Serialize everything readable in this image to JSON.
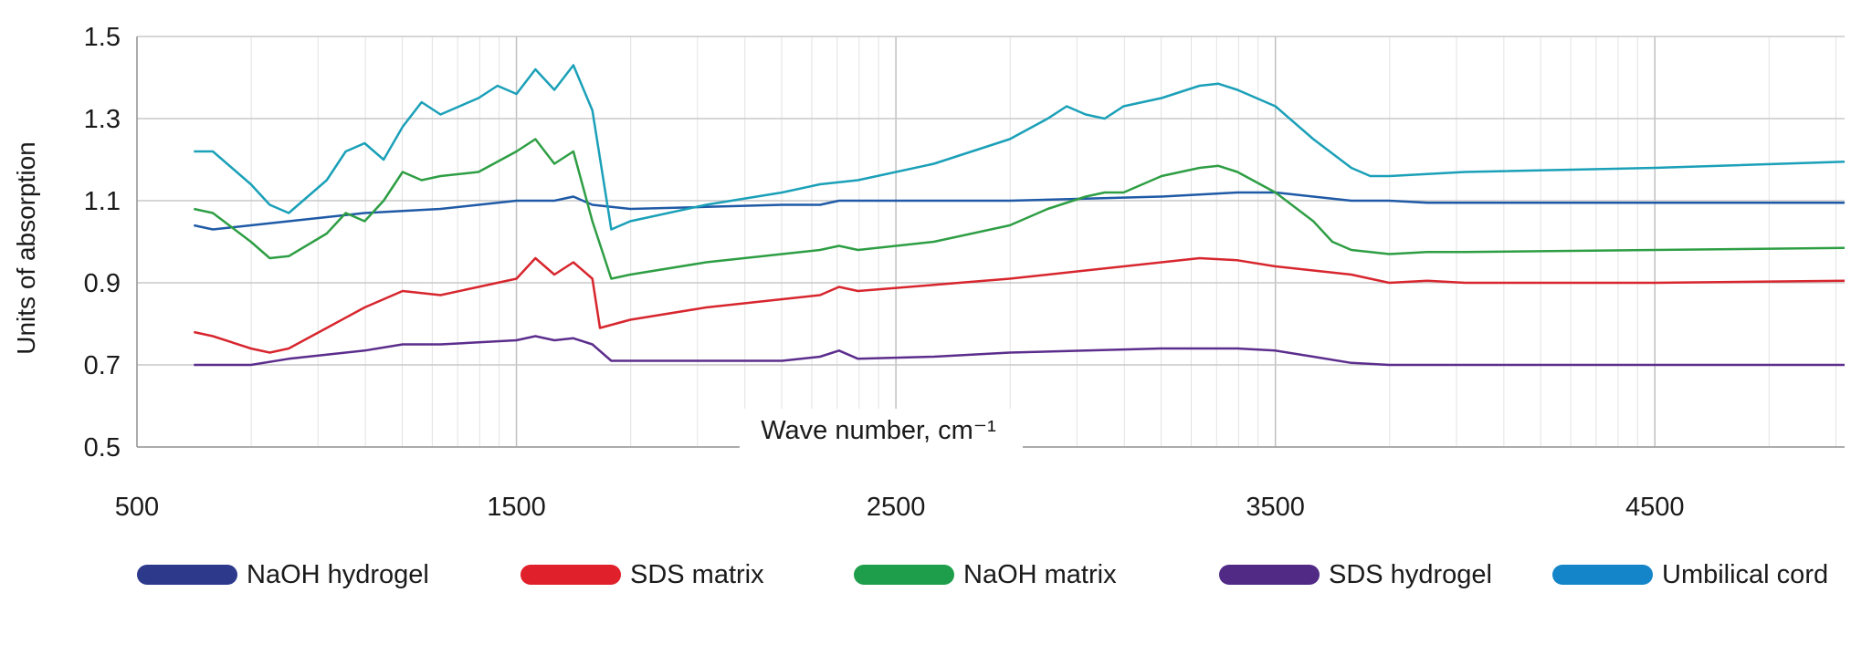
{
  "chart_data": {
    "type": "line",
    "xlabel": "Wave number, cm⁻¹",
    "ylabel": "Units of absorption",
    "xlim": [
      500,
      5000
    ],
    "ylim": [
      0.5,
      1.5
    ],
    "x_ticks": [
      "500",
      "1500",
      "2500",
      "3500",
      "4500"
    ],
    "y_ticks": [
      "0.5",
      "0.7",
      "0.9",
      "1.1",
      "1.3",
      "1.5"
    ],
    "grid": true,
    "legend_position": "bottom",
    "series": [
      {
        "name": "NaOH hydrogel",
        "color": "#1f5aa6",
        "legend_color": "#2d3a8c",
        "x": [
          650,
          700,
          800,
          900,
          1000,
          1100,
          1200,
          1300,
          1400,
          1500,
          1550,
          1600,
          1650,
          1700,
          1800,
          2000,
          2200,
          2300,
          2350,
          2400,
          2600,
          2800,
          3000,
          3200,
          3400,
          3500,
          3600,
          3700,
          3800,
          3900,
          4000,
          4500,
          5000
        ],
        "y": [
          1.04,
          1.03,
          1.04,
          1.05,
          1.06,
          1.07,
          1.075,
          1.08,
          1.09,
          1.1,
          1.1,
          1.1,
          1.11,
          1.09,
          1.08,
          1.085,
          1.09,
          1.09,
          1.1,
          1.1,
          1.1,
          1.1,
          1.105,
          1.11,
          1.12,
          1.12,
          1.11,
          1.1,
          1.1,
          1.095,
          1.095,
          1.095,
          1.095
        ]
      },
      {
        "name": "SDS matrix",
        "color": "#d7262e",
        "legend_color": "#e0202a",
        "x": [
          650,
          700,
          800,
          850,
          900,
          1000,
          1100,
          1200,
          1300,
          1400,
          1500,
          1550,
          1600,
          1650,
          1700,
          1720,
          1800,
          2000,
          2200,
          2300,
          2350,
          2400,
          2600,
          2800,
          3000,
          3200,
          3300,
          3400,
          3500,
          3600,
          3700,
          3800,
          3900,
          4000,
          4500,
          5000
        ],
        "y": [
          0.78,
          0.77,
          0.74,
          0.73,
          0.74,
          0.79,
          0.84,
          0.88,
          0.87,
          0.89,
          0.91,
          0.96,
          0.92,
          0.95,
          0.91,
          0.79,
          0.81,
          0.84,
          0.86,
          0.87,
          0.89,
          0.88,
          0.895,
          0.91,
          0.93,
          0.95,
          0.96,
          0.955,
          0.94,
          0.93,
          0.92,
          0.9,
          0.905,
          0.9,
          0.9,
          0.905
        ]
      },
      {
        "name": "NaOH matrix",
        "color": "#2e9e44",
        "legend_color": "#1e9e4a",
        "x": [
          650,
          700,
          800,
          850,
          900,
          1000,
          1050,
          1100,
          1150,
          1200,
          1250,
          1300,
          1400,
          1500,
          1550,
          1600,
          1650,
          1700,
          1750,
          1800,
          2000,
          2200,
          2300,
          2350,
          2400,
          2600,
          2800,
          2900,
          3000,
          3050,
          3100,
          3200,
          3300,
          3350,
          3400,
          3500,
          3600,
          3650,
          3700,
          3800,
          3900,
          4000,
          4500,
          5000
        ],
        "y": [
          1.08,
          1.07,
          1.0,
          0.96,
          0.965,
          1.02,
          1.07,
          1.05,
          1.1,
          1.17,
          1.15,
          1.16,
          1.17,
          1.22,
          1.25,
          1.19,
          1.22,
          1.05,
          0.91,
          0.92,
          0.95,
          0.97,
          0.98,
          0.99,
          0.98,
          1.0,
          1.04,
          1.08,
          1.11,
          1.12,
          1.12,
          1.16,
          1.18,
          1.185,
          1.17,
          1.12,
          1.05,
          1.0,
          0.98,
          0.97,
          0.975,
          0.975,
          0.98,
          0.985
        ]
      },
      {
        "name": "SDS hydrogel",
        "color": "#5b2d8c",
        "legend_color": "#512a86",
        "x": [
          650,
          700,
          800,
          900,
          1000,
          1100,
          1200,
          1300,
          1400,
          1500,
          1550,
          1600,
          1650,
          1700,
          1750,
          1800,
          2000,
          2200,
          2300,
          2350,
          2400,
          2600,
          2800,
          3000,
          3200,
          3300,
          3400,
          3500,
          3600,
          3700,
          3800,
          3900,
          4000,
          4500,
          5000
        ],
        "y": [
          0.7,
          0.7,
          0.7,
          0.715,
          0.725,
          0.735,
          0.75,
          0.75,
          0.755,
          0.76,
          0.77,
          0.76,
          0.765,
          0.75,
          0.71,
          0.71,
          0.71,
          0.71,
          0.72,
          0.735,
          0.715,
          0.72,
          0.73,
          0.735,
          0.74,
          0.74,
          0.74,
          0.735,
          0.72,
          0.705,
          0.7,
          0.7,
          0.7,
          0.7,
          0.7
        ]
      },
      {
        "name": "Umbilical cord",
        "color": "#1aa0b8",
        "legend_color": "#1485c8",
        "x": [
          650,
          700,
          800,
          850,
          900,
          1000,
          1050,
          1100,
          1150,
          1200,
          1250,
          1300,
          1350,
          1400,
          1450,
          1500,
          1550,
          1600,
          1650,
          1700,
          1750,
          1800,
          2000,
          2200,
          2300,
          2400,
          2600,
          2800,
          2900,
          2950,
          3000,
          3050,
          3100,
          3200,
          3300,
          3350,
          3400,
          3500,
          3600,
          3700,
          3750,
          3800,
          4000,
          4500,
          5000
        ],
        "y": [
          1.22,
          1.22,
          1.14,
          1.09,
          1.07,
          1.15,
          1.22,
          1.24,
          1.2,
          1.28,
          1.34,
          1.31,
          1.33,
          1.35,
          1.38,
          1.36,
          1.42,
          1.37,
          1.43,
          1.32,
          1.03,
          1.05,
          1.09,
          1.12,
          1.14,
          1.15,
          1.19,
          1.25,
          1.3,
          1.33,
          1.31,
          1.3,
          1.33,
          1.35,
          1.38,
          1.385,
          1.37,
          1.33,
          1.25,
          1.18,
          1.16,
          1.16,
          1.17,
          1.18,
          1.195
        ]
      }
    ]
  }
}
